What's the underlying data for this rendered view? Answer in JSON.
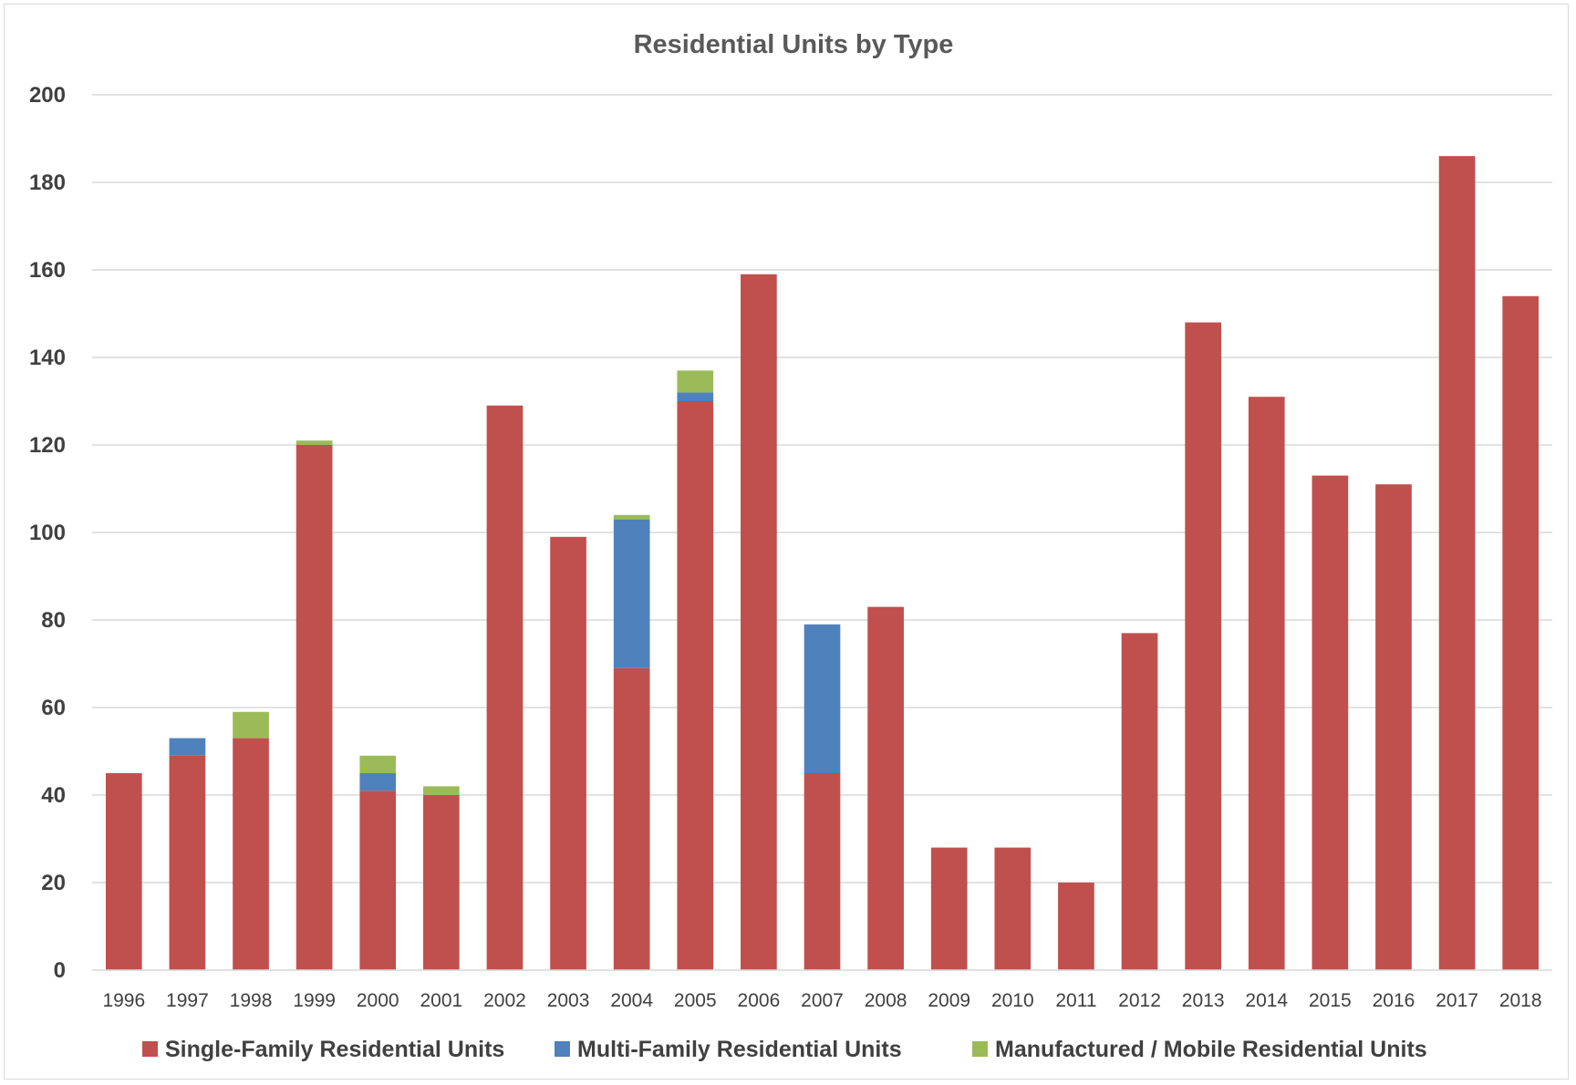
{
  "chart_data": {
    "type": "bar",
    "stacked": true,
    "title": "Residential Units by Type",
    "xlabel": "",
    "ylabel": "",
    "ylim": [
      0,
      200
    ],
    "yticks": [
      0,
      20,
      40,
      60,
      80,
      100,
      120,
      140,
      160,
      180,
      200
    ],
    "grid": true,
    "legend_position": "bottom",
    "categories": [
      "1996",
      "1997",
      "1998",
      "1999",
      "2000",
      "2001",
      "2002",
      "2003",
      "2004",
      "2005",
      "2006",
      "2007",
      "2008",
      "2009",
      "2010",
      "2011",
      "2012",
      "2013",
      "2014",
      "2015",
      "2016",
      "2017",
      "2018"
    ],
    "series": [
      {
        "name": "Single-Family Residential Units",
        "color": "#c0504d",
        "values": [
          45,
          49,
          53,
          120,
          41,
          40,
          129,
          99,
          69,
          130,
          159,
          45,
          83,
          28,
          28,
          20,
          77,
          148,
          131,
          113,
          111,
          186,
          154
        ]
      },
      {
        "name": "Multi-Family Residential Units",
        "color": "#4f81bd",
        "values": [
          0,
          4,
          0,
          0,
          4,
          0,
          0,
          0,
          34,
          2,
          0,
          34,
          0,
          0,
          0,
          0,
          0,
          0,
          0,
          0,
          0,
          0,
          0
        ]
      },
      {
        "name": "Manufactured / Mobile Residential  Units",
        "color": "#9bbb59",
        "values": [
          0,
          0,
          6,
          1,
          4,
          2,
          0,
          0,
          1,
          5,
          0,
          0,
          0,
          0,
          0,
          0,
          0,
          0,
          0,
          0,
          0,
          0,
          0
        ]
      }
    ]
  }
}
